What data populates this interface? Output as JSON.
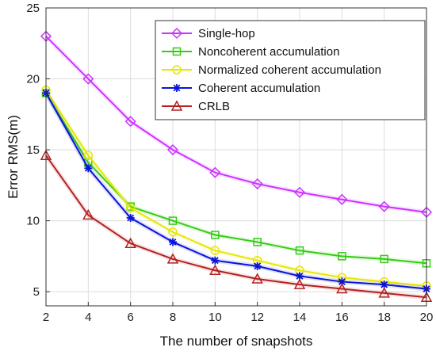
{
  "chart_data": {
    "type": "line",
    "xlabel": "The number of snapshots",
    "ylabel": "Error RMS(m)",
    "x": [
      2,
      4,
      6,
      8,
      10,
      12,
      14,
      16,
      18,
      20
    ],
    "xlim": [
      2,
      20
    ],
    "ylim": [
      4,
      25
    ],
    "xticks": [
      2,
      4,
      6,
      8,
      10,
      12,
      14,
      16,
      18,
      20
    ],
    "yticks": [
      5,
      10,
      15,
      20,
      25
    ],
    "grid": true,
    "legend_position": "top-right",
    "series": [
      {
        "name": "Single-hop",
        "color": "#cc33ff",
        "marker": "diamond",
        "values": [
          23.0,
          20.0,
          17.0,
          15.0,
          13.4,
          12.6,
          12.0,
          11.5,
          11.0,
          10.6
        ]
      },
      {
        "name": "Noncoherent accumulation",
        "color": "#33cc11",
        "marker": "square",
        "values": [
          19.0,
          14.1,
          11.0,
          10.0,
          9.0,
          8.5,
          7.9,
          7.5,
          7.3,
          7.0
        ]
      },
      {
        "name": "Normalized coherent accumulation",
        "color": "#e6e600",
        "marker": "circle",
        "values": [
          19.2,
          14.6,
          10.9,
          9.2,
          7.9,
          7.2,
          6.5,
          6.0,
          5.7,
          5.4
        ]
      },
      {
        "name": "Coherent accumulation",
        "color": "#0a14d8",
        "marker": "star",
        "values": [
          19.0,
          13.7,
          10.2,
          8.5,
          7.2,
          6.8,
          6.1,
          5.7,
          5.5,
          5.2
        ]
      },
      {
        "name": "CRLB",
        "color": "#b52020",
        "marker": "triangle",
        "values": [
          14.6,
          10.4,
          8.4,
          7.3,
          6.5,
          5.9,
          5.5,
          5.2,
          4.9,
          4.6
        ]
      }
    ]
  }
}
